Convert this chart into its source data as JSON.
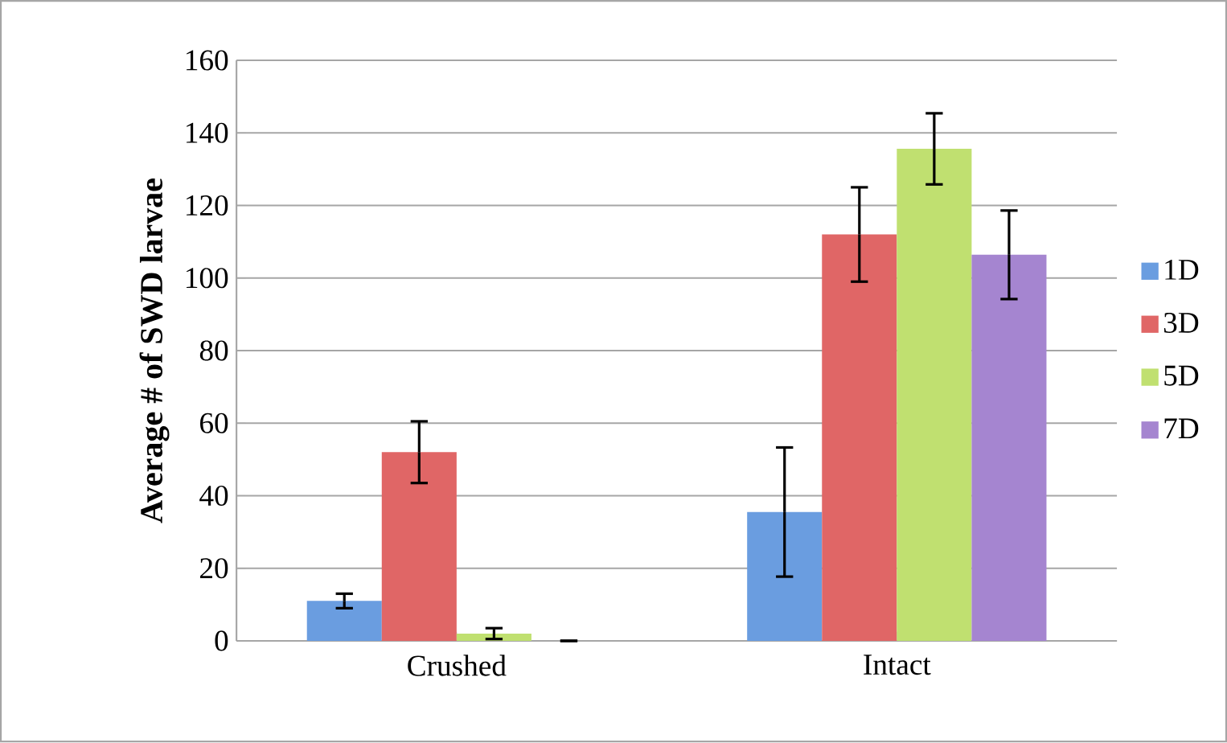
{
  "chart_data": {
    "type": "bar",
    "ylabel": "Average # of SWD larvae",
    "categories": [
      "Crushed",
      "Intact"
    ],
    "series": [
      {
        "name": "1D",
        "color": "#6a9de0",
        "values": [
          11,
          35.5
        ],
        "errors": [
          2,
          17.8
        ]
      },
      {
        "name": "3D",
        "color": "#e06666",
        "values": [
          52,
          112
        ],
        "errors": [
          8.5,
          13
        ]
      },
      {
        "name": "5D",
        "color": "#c0e070",
        "values": [
          2,
          135.6
        ],
        "errors": [
          1.5,
          9.8
        ]
      },
      {
        "name": "7D",
        "color": "#a585d0",
        "values": [
          0,
          106.4
        ],
        "errors": [
          null,
          12.2
        ]
      }
    ],
    "ylim": [
      0,
      160
    ],
    "yticks": [
      0,
      20,
      40,
      60,
      80,
      100,
      120,
      140,
      160
    ],
    "grid": "y",
    "legend": "right"
  }
}
